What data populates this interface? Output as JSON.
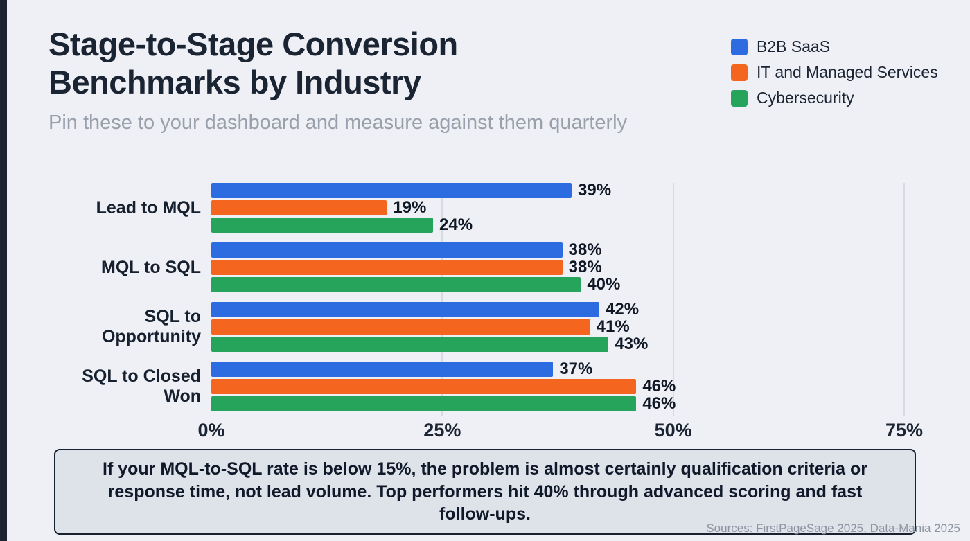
{
  "header": {
    "title_lines": [
      "Stage-to-Stage Conversion",
      "Benchmarks by Industry"
    ],
    "subtitle": "Pin these to your dashboard and measure against them quarterly"
  },
  "chart_data": {
    "type": "bar",
    "orientation": "horizontal",
    "categories": [
      "Lead to MQL",
      "MQL to SQL",
      "SQL to Opportunity",
      "SQL to Closed Won"
    ],
    "series": [
      {
        "name": "B2B SaaS",
        "color": "#2d6ce0",
        "values": [
          39,
          38,
          42,
          37
        ]
      },
      {
        "name": "IT and Managed Services",
        "color": "#f4651f",
        "values": [
          19,
          38,
          41,
          46
        ]
      },
      {
        "name": "Cybersecurity",
        "color": "#27a45b",
        "values": [
          24,
          40,
          43,
          46
        ]
      }
    ],
    "value_suffix": "%",
    "xlim": [
      0,
      75
    ],
    "x_ticks": [
      {
        "value": 0,
        "label": "0%"
      },
      {
        "value": 25,
        "label": "25%"
      },
      {
        "value": 50,
        "label": "50%"
      },
      {
        "value": 75,
        "label": "75%"
      }
    ],
    "grid": true,
    "legend_position": "top-right"
  },
  "callout": {
    "text": "If your MQL-to-SQL rate is below 15%, the problem is almost certainly qualification criteria or response time, not lead volume. Top performers hit 40% through advanced scoring and fast follow-ups."
  },
  "footer": {
    "sources": "Sources: FirstPageSage 2025, Data-Mania 2025"
  }
}
